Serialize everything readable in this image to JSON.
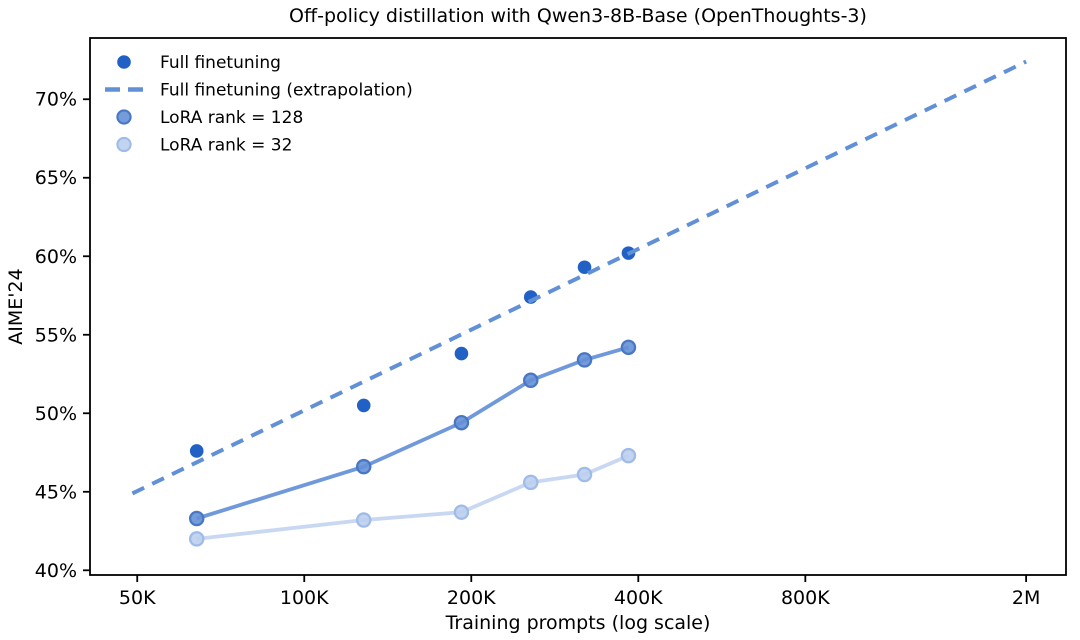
{
  "figure": {
    "background": "#ffffff",
    "text_color": "#000000",
    "spine_color": "#000000"
  },
  "chart_data": {
    "type": "scatter",
    "title": "Off-policy distillation with Qwen3-8B-Base (OpenThoughts-3)",
    "xlabel": "Training prompts (log scale)",
    "ylabel": "AIME'24",
    "x_scale": "log",
    "grid": false,
    "legend_position": "upper-left",
    "legend_frame": false,
    "x_range": [
      41100,
      2360000
    ],
    "y_range": [
      39.7,
      73.9
    ],
    "x_ticks": [
      {
        "value": 50000,
        "label": "50K"
      },
      {
        "value": 100000,
        "label": "100K"
      },
      {
        "value": 200000,
        "label": "200K"
      },
      {
        "value": 400000,
        "label": "400K"
      },
      {
        "value": 800000,
        "label": "800K"
      },
      {
        "value": 2000000,
        "label": "2M"
      }
    ],
    "y_ticks": [
      {
        "value": 40,
        "label": "40%"
      },
      {
        "value": 45,
        "label": "45%"
      },
      {
        "value": 50,
        "label": "50%"
      },
      {
        "value": 55,
        "label": "55%"
      },
      {
        "value": 60,
        "label": "60%"
      },
      {
        "value": 65,
        "label": "65%"
      },
      {
        "value": 70,
        "label": "70%"
      }
    ],
    "series": [
      {
        "name": "Full finetuning",
        "kind": "scatter",
        "color": "#2161c6",
        "marker_fill": "#2161c6",
        "marker_edge": "#2161c6",
        "x": [
          64000,
          128000,
          192000,
          256000,
          320000,
          384000
        ],
        "y": [
          47.6,
          50.5,
          53.8,
          57.4,
          59.3,
          60.2
        ]
      },
      {
        "name": "Full finetuning (extrapolation)",
        "kind": "dashed-line",
        "color": "#6190d7",
        "x": [
          49000,
          2000000
        ],
        "y": [
          44.9,
          72.4
        ]
      },
      {
        "name": "LoRA rank = 128",
        "kind": "line-marker",
        "color": "#7099dc",
        "marker_fill": "#6590d6",
        "marker_edge": "#4a77c4",
        "x": [
          64000,
          128000,
          192000,
          256000,
          320000,
          384000
        ],
        "y": [
          43.3,
          46.6,
          49.4,
          52.1,
          53.4,
          54.2
        ]
      },
      {
        "name": "LoRA rank = 32",
        "kind": "line-marker",
        "color": "#c9d8f2",
        "marker_fill": "#bccfee",
        "marker_edge": "#9fbbe7",
        "x": [
          64000,
          128000,
          192000,
          256000,
          320000,
          384000
        ],
        "y": [
          42.0,
          43.2,
          43.7,
          45.6,
          46.1,
          47.3
        ]
      }
    ]
  }
}
